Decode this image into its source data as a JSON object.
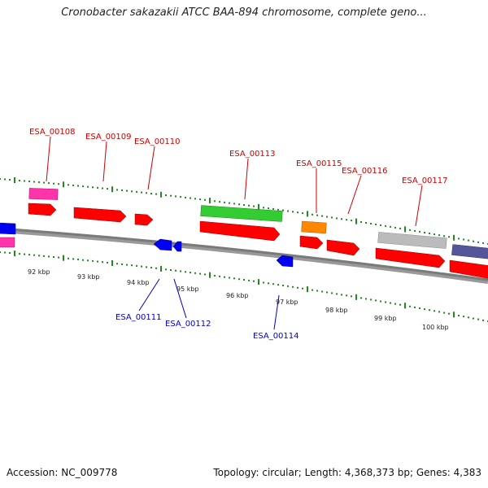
{
  "title": "Cronobacter sakazakii ATCC BAA-894 chromosome, complete geno...",
  "footer": {
    "accession": "Accession: NC_009778",
    "summary": "Topology: circular; Length: 4,368,373 bp; Genes: 4,383"
  },
  "kbp_labels": [
    "92 kbp",
    "93 kbp",
    "94 kbp",
    "95 kbp",
    "96 kbp",
    "97 kbp",
    "98 kbp",
    "99 kbp",
    "100 kbp"
  ],
  "genes_plus": [
    "ESA_00108",
    "ESA_00109",
    "ESA_00110",
    "ESA_00113",
    "ESA_00115",
    "ESA_00116",
    "ESA_00117"
  ],
  "genes_minus": [
    "ESA_00111",
    "ESA_00112",
    "ESA_00114"
  ],
  "colors": {
    "cds": "#ff0000",
    "gene_minus": "#0000ee",
    "pink": "#ff33aa",
    "green": "#33cc33",
    "orange": "#ff8800",
    "gray": "#bbbbbb",
    "purple": "#555599",
    "label_plus": "#cc0000",
    "label_minus": "#0000cc",
    "tick": "#228822"
  }
}
